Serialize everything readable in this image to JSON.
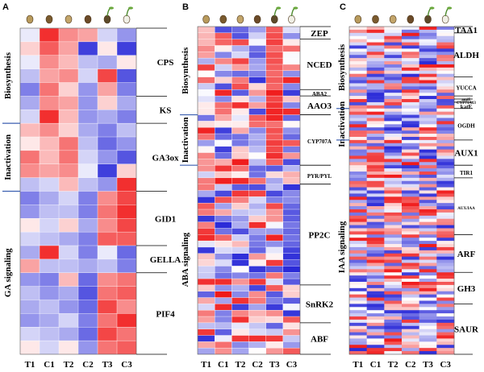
{
  "figure": {
    "column_labels": [
      "T1",
      "C1",
      "T2",
      "C2",
      "T3",
      "C3"
    ],
    "scale_colors": {
      "low": "#2a2ad8",
      "mid": "#ffffff",
      "high": "#f01818"
    },
    "panels": [
      {
        "label": "A",
        "categories": [
          {
            "name": "Biosynthesis",
            "start": 0,
            "end": 7
          },
          {
            "name": "Inactivation",
            "start": 7,
            "end": 12
          },
          {
            "name": "GA signaling",
            "start": 12,
            "end": 24
          }
        ],
        "genes": [
          {
            "name": "CPS",
            "start": 0,
            "end": 5
          },
          {
            "name": "KS",
            "start": 5,
            "end": 7
          },
          {
            "name": "GA3ox",
            "start": 7,
            "end": 12
          },
          {
            "name": "GID1",
            "start": 12,
            "end": 16
          },
          {
            "name": "GELLA",
            "start": 16,
            "end": 18
          },
          {
            "name": "PIF4",
            "start": 18,
            "end": 24
          }
        ],
        "heatmap": [
          [
            -0.1,
            0.9,
            0.5,
            0.4,
            -0.2,
            -0.5
          ],
          [
            0.2,
            0.7,
            0.4,
            -0.9,
            0.1,
            -0.9
          ],
          [
            -0.1,
            0.5,
            0.3,
            -0.3,
            -0.4,
            0.1
          ],
          [
            -0.3,
            0.4,
            0.5,
            -0.2,
            0.8,
            -0.8
          ],
          [
            -0.6,
            0.6,
            0.2,
            -0.5,
            0.4,
            -0.6
          ],
          [
            -0.4,
            0.5,
            0.4,
            -0.5,
            0.2,
            -0.4
          ],
          [
            -0.2,
            0.9,
            0.3,
            -0.5,
            -0.4,
            -0.6
          ],
          [
            0.3,
            0.5,
            0.2,
            -0.4,
            -0.6,
            -0.3
          ],
          [
            0.1,
            0.3,
            0.6,
            -0.3,
            -0.7,
            -0.5
          ],
          [
            0.6,
            0.3,
            0.6,
            -0.2,
            -0.5,
            -0.8
          ],
          [
            0.5,
            0.4,
            0.5,
            -0.1,
            -0.9,
            0.2
          ],
          [
            -0.3,
            -0.2,
            0.3,
            -0.3,
            -0.5,
            0.9
          ],
          [
            -0.6,
            -0.4,
            -0.2,
            -0.6,
            0.5,
            0.8
          ],
          [
            -0.5,
            -0.3,
            -0.3,
            -0.6,
            0.6,
            0.9
          ],
          [
            0.1,
            -0.2,
            0.2,
            -0.4,
            0.5,
            0.8
          ],
          [
            -0.2,
            -0.3,
            -0.4,
            -0.6,
            0.7,
            0.7
          ],
          [
            -0.4,
            0.9,
            -0.2,
            -0.6,
            -0.1,
            -0.7
          ],
          [
            0.4,
            -0.3,
            -0.3,
            -0.4,
            -0.3,
            -0.6
          ],
          [
            -0.5,
            -0.6,
            0.3,
            -0.7,
            0.5,
            0.6
          ],
          [
            -0.3,
            -0.5,
            -0.4,
            -0.8,
            0.6,
            0.7
          ],
          [
            -0.4,
            -0.3,
            -0.5,
            -0.7,
            0.8,
            0.5
          ],
          [
            -0.5,
            -0.4,
            -0.2,
            -0.6,
            0.6,
            0.9
          ],
          [
            -0.2,
            -0.3,
            -0.4,
            -0.7,
            0.8,
            0.6
          ],
          [
            0.1,
            -0.2,
            0.1,
            -0.5,
            0.6,
            0.7
          ]
        ]
      },
      {
        "label": "B",
        "categories": [
          {
            "name": "Biosynthesis",
            "start": 0,
            "end": 14
          },
          {
            "name": "Inactivation",
            "start": 14,
            "end": 22
          },
          {
            "name": "ABA signaling",
            "start": 22,
            "end": 52
          }
        ],
        "genes": [
          {
            "name": "ZEP",
            "start": 0,
            "end": 2,
            "size": "normal"
          },
          {
            "name": "NCED",
            "start": 2,
            "end": 10,
            "size": "normal"
          },
          {
            "name": "ABA2",
            "start": 10,
            "end": 11,
            "size": "small"
          },
          {
            "name": "AAO3",
            "start": 11,
            "end": 14,
            "size": "normal"
          },
          {
            "name": "CYP707A",
            "start": 14,
            "end": 22,
            "size": "small"
          },
          {
            "name": "PYR/PYL",
            "start": 22,
            "end": 25,
            "size": "small"
          },
          {
            "name": "PP2C",
            "start": 25,
            "end": 41,
            "size": "normal"
          },
          {
            "name": "SnRK2",
            "start": 41,
            "end": 47,
            "size": "normal"
          },
          {
            "name": "ABF",
            "start": 47,
            "end": 52,
            "size": "normal"
          }
        ]
      },
      {
        "label": "C",
        "categories": [
          {
            "name": "Biosynthesis",
            "start": 0,
            "end": 26
          },
          {
            "name": "Inactivation",
            "start": 26,
            "end": 36
          },
          {
            "name": "IAA signaling",
            "start": 36,
            "end": 104
          }
        ],
        "genes": [
          {
            "name": "TAA1",
            "start": 0,
            "end": 2,
            "size": "normal"
          },
          {
            "name": "ALDH",
            "start": 2,
            "end": 16,
            "size": "normal"
          },
          {
            "name": "YUCCA",
            "start": 16,
            "end": 22,
            "size": "small"
          },
          {
            "name": "amiE",
            "start": 22,
            "end": 23,
            "size": "tiny"
          },
          {
            "name": "CYP71A13",
            "start": 23,
            "end": 24,
            "size": "tiny"
          },
          {
            "name": "katE",
            "start": 24,
            "end": 26,
            "size": "small"
          },
          {
            "name": "OGDH",
            "start": 26,
            "end": 36,
            "size": "small"
          },
          {
            "name": "AUX1",
            "start": 36,
            "end": 44,
            "size": "normal"
          },
          {
            "name": "TIR1",
            "start": 44,
            "end": 48,
            "size": "small"
          },
          {
            "name": "AUX/IAA",
            "start": 48,
            "end": 66,
            "size": "tiny"
          },
          {
            "name": "ARF",
            "start": 66,
            "end": 78,
            "size": "normal"
          },
          {
            "name": "GH3",
            "start": 78,
            "end": 88,
            "size": "normal"
          },
          {
            "name": "SAUR",
            "start": 88,
            "end": 104,
            "size": "normal"
          }
        ]
      }
    ]
  }
}
